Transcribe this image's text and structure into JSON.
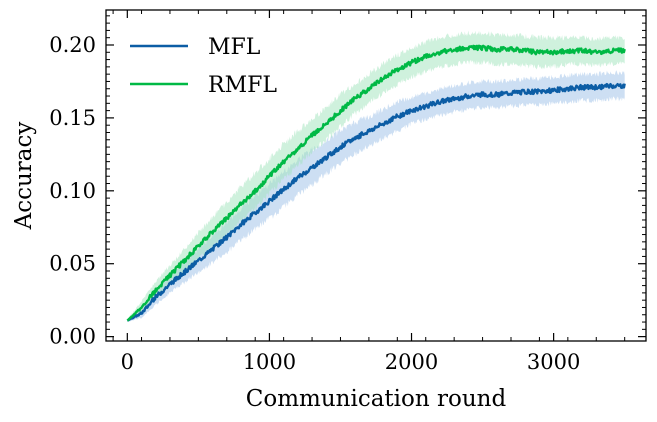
{
  "chart_data": {
    "type": "line",
    "title": "",
    "xlabel": "Communication round",
    "ylabel": "Accuracy",
    "xlim": [
      -150,
      3650
    ],
    "ylim": [
      -0.003,
      0.224
    ],
    "xticks": [
      0,
      1000,
      2000,
      3000
    ],
    "xtick_labels": [
      "0",
      "1000",
      "2000",
      "3000"
    ],
    "yticks": [
      0.0,
      0.05,
      0.1,
      0.15,
      0.2
    ],
    "ytick_labels": [
      "0.00",
      "0.05",
      "0.10",
      "0.15",
      "0.20"
    ],
    "grid": false,
    "legend_position": "top-left",
    "series": [
      {
        "name": "MFL",
        "color": "#0C5DA5",
        "band_color": "#9BBFE8",
        "x": [
          0,
          100,
          200,
          300,
          400,
          500,
          600,
          700,
          800,
          900,
          1000,
          1100,
          1200,
          1300,
          1400,
          1500,
          1600,
          1700,
          1800,
          1900,
          2000,
          2100,
          2200,
          2300,
          2400,
          2500,
          2600,
          2700,
          2800,
          2900,
          3000,
          3100,
          3200,
          3300,
          3400,
          3500
        ],
        "values": [
          0.011,
          0.016,
          0.027,
          0.036,
          0.044,
          0.052,
          0.06,
          0.068,
          0.077,
          0.085,
          0.093,
          0.101,
          0.109,
          0.116,
          0.123,
          0.13,
          0.136,
          0.141,
          0.146,
          0.151,
          0.155,
          0.158,
          0.161,
          0.163,
          0.165,
          0.166,
          0.166,
          0.167,
          0.168,
          0.168,
          0.169,
          0.17,
          0.171,
          0.171,
          0.172,
          0.172
        ],
        "band_halfwidth": [
          0.001,
          0.003,
          0.005,
          0.006,
          0.007,
          0.008,
          0.009,
          0.01,
          0.011,
          0.011,
          0.012,
          0.012,
          0.012,
          0.012,
          0.011,
          0.011,
          0.011,
          0.01,
          0.01,
          0.01,
          0.009,
          0.009,
          0.009,
          0.009,
          0.009,
          0.009,
          0.009,
          0.009,
          0.009,
          0.009,
          0.009,
          0.009,
          0.009,
          0.009,
          0.009,
          0.009
        ]
      },
      {
        "name": "RMFL",
        "color": "#00B945",
        "band_color": "#9FE3BC",
        "x": [
          0,
          100,
          200,
          300,
          400,
          500,
          600,
          700,
          800,
          900,
          1000,
          1100,
          1200,
          1300,
          1400,
          1500,
          1600,
          1700,
          1800,
          1900,
          2000,
          2100,
          2200,
          2300,
          2400,
          2500,
          2600,
          2700,
          2800,
          2900,
          3000,
          3100,
          3200,
          3300,
          3400,
          3500
        ],
        "values": [
          0.011,
          0.02,
          0.032,
          0.042,
          0.052,
          0.062,
          0.072,
          0.081,
          0.091,
          0.1,
          0.11,
          0.12,
          0.129,
          0.138,
          0.146,
          0.155,
          0.163,
          0.17,
          0.177,
          0.183,
          0.188,
          0.192,
          0.195,
          0.197,
          0.198,
          0.198,
          0.197,
          0.197,
          0.196,
          0.195,
          0.195,
          0.196,
          0.196,
          0.195,
          0.196,
          0.196
        ],
        "band_halfwidth": [
          0.001,
          0.004,
          0.006,
          0.007,
          0.008,
          0.009,
          0.01,
          0.011,
          0.012,
          0.012,
          0.012,
          0.012,
          0.012,
          0.011,
          0.011,
          0.011,
          0.01,
          0.01,
          0.01,
          0.01,
          0.01,
          0.01,
          0.01,
          0.01,
          0.01,
          0.01,
          0.01,
          0.01,
          0.01,
          0.01,
          0.01,
          0.009,
          0.009,
          0.009,
          0.009,
          0.009
        ]
      }
    ]
  }
}
